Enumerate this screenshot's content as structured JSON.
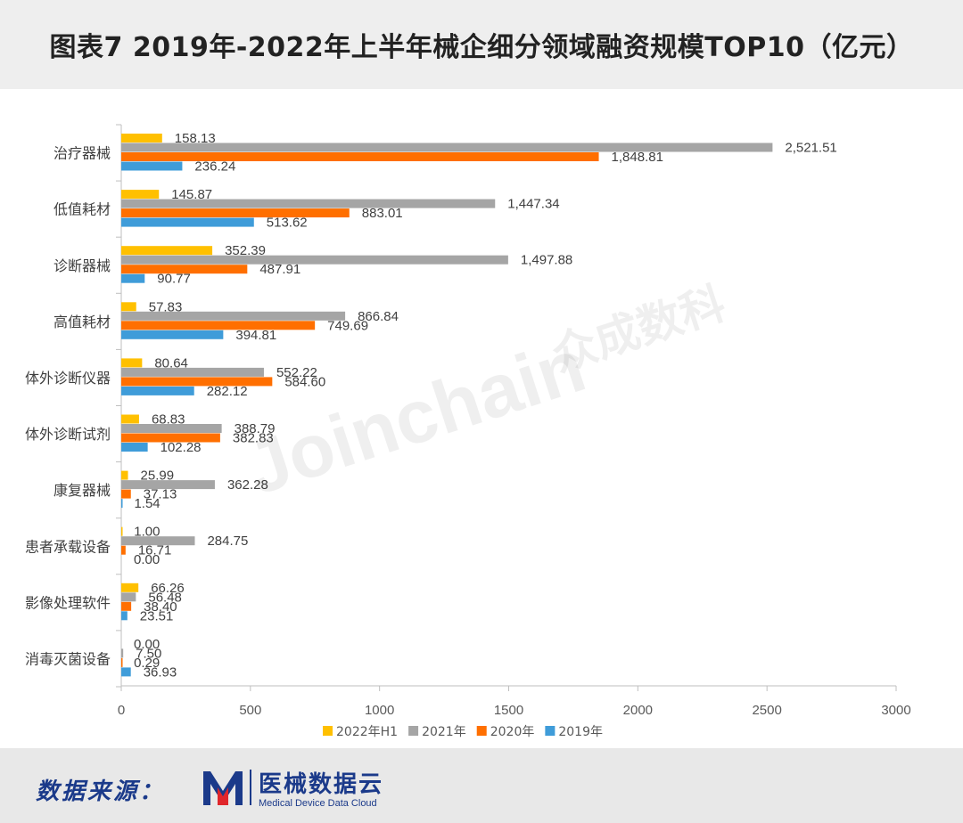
{
  "header": {
    "title": "图表7  2019年-2022年上半年械企细分领域融资规模TOP10（亿元）"
  },
  "watermark": {
    "en": "Joinchain",
    "cn": "众成数科"
  },
  "footer": {
    "source_label": "数据来源：",
    "logo_cn": "医械数据云",
    "logo_en": "Medical Device Data Cloud"
  },
  "chart_data": {
    "type": "bar",
    "orientation": "horizontal",
    "categories": [
      "治疗器械",
      "低值耗材",
      "诊断器械",
      "高值耗材",
      "体外诊断仪器",
      "体外诊断试剂",
      "康复器械",
      "患者承载设备",
      "影像处理软件",
      "消毒灭菌设备"
    ],
    "series": [
      {
        "name": "2022年H1",
        "color": "#FFC000",
        "values": [
          158.13,
          145.87,
          352.39,
          57.83,
          80.64,
          68.83,
          25.99,
          1.0,
          66.26,
          0.0
        ],
        "labels": [
          "158.13",
          "145.87",
          "352.39",
          "57.83",
          "80.64",
          "68.83",
          "25.99",
          "1.00",
          "66.26",
          "0.00"
        ]
      },
      {
        "name": "2021年",
        "color": "#A5A5A5",
        "values": [
          2521.51,
          1447.34,
          1497.88,
          866.84,
          552.22,
          388.79,
          362.28,
          284.75,
          56.48,
          7.5
        ],
        "labels": [
          "2,521.51",
          "1,447.34",
          "1,497.88",
          "866.84",
          "552.22",
          "388.79",
          "362.28",
          "284.75",
          "56.48",
          "7.50"
        ]
      },
      {
        "name": "2020年",
        "color": "#FF6F00",
        "values": [
          1848.81,
          883.01,
          487.91,
          749.69,
          584.6,
          382.83,
          37.13,
          16.71,
          38.4,
          0.29
        ],
        "labels": [
          "1,848.81",
          "883.01",
          "487.91",
          "749.69",
          "584.60",
          "382.83",
          "37.13",
          "16.71",
          "38.40",
          "0.29"
        ]
      },
      {
        "name": "2019年",
        "color": "#3F9CD9",
        "values": [
          236.24,
          513.62,
          90.77,
          394.81,
          282.12,
          102.28,
          1.54,
          0.0,
          23.51,
          36.93
        ],
        "labels": [
          "236.24",
          "513.62",
          "90.77",
          "394.81",
          "282.12",
          "102.28",
          "1.54",
          "0.00",
          "23.51",
          "36.93"
        ]
      }
    ],
    "xlim": [
      0,
      3000
    ],
    "xticks": [
      "0",
      "500",
      "1000",
      "1500",
      "2000",
      "2500",
      "3000"
    ],
    "legend_position": "bottom",
    "grid": false
  }
}
